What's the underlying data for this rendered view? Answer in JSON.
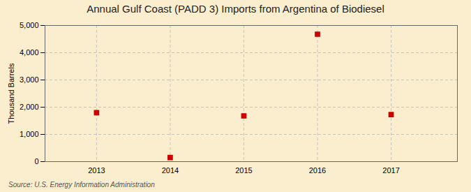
{
  "chart_data": {
    "type": "scatter",
    "title": "Annual Gulf Coast (PADD 3) Imports from Argentina of Biodiesel",
    "ylabel": "Thousand Barrels",
    "source": "Source: U.S. Energy Information Administration",
    "x": [
      2013,
      2014,
      2015,
      2016,
      2017
    ],
    "values": [
      1800,
      150,
      1680,
      4680,
      1730
    ],
    "xlim": [
      2012.3,
      2017.9
    ],
    "xticks": [
      2013,
      2014,
      2015,
      2016,
      2017
    ],
    "ylim": [
      0,
      5000
    ],
    "yticks": [
      0,
      {
        "value": 1000,
        "label": "1,000"
      },
      {
        "value": 2000,
        "label": "2,000"
      },
      {
        "value": 3000,
        "label": "3,000"
      },
      {
        "value": 4000,
        "label": "4,000"
      },
      {
        "value": 5000,
        "label": "5,000"
      }
    ],
    "color": "#cc0000",
    "marker": "square",
    "grid": true
  }
}
